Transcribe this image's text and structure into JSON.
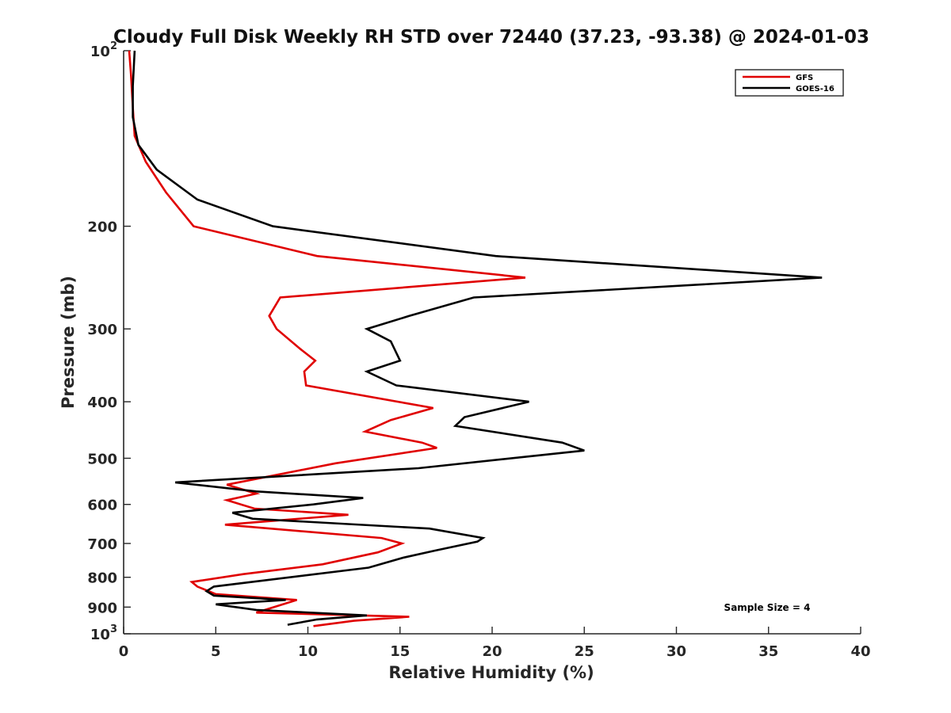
{
  "chart_data": {
    "type": "line",
    "title": "Cloudy Full Disk Weekly RH STD over 72440 (37.23, -93.38) @ 2024-01-03",
    "xlabel": "Relative Humidity (%)",
    "ylabel": "Pressure (mb)",
    "xlim": [
      0,
      40
    ],
    "ylim": [
      100,
      1000
    ],
    "y_scale": "log",
    "y_reversed": true,
    "grid": false,
    "legend_position": "top-right",
    "x_ticks": [
      0,
      5,
      10,
      15,
      20,
      25,
      30,
      35,
      40
    ],
    "x_tick_labels": [
      "0",
      "5",
      "10",
      "15",
      "20",
      "25",
      "30",
      "35",
      "40"
    ],
    "y_ticks": [
      100,
      200,
      300,
      400,
      500,
      600,
      700,
      800,
      900,
      1000
    ],
    "y_tick_labels": [
      {
        "base": "10",
        "exp": "2"
      },
      {
        "base": "200",
        "exp": ""
      },
      {
        "base": "300",
        "exp": ""
      },
      {
        "base": "400",
        "exp": ""
      },
      {
        "base": "500",
        "exp": ""
      },
      {
        "base": "600",
        "exp": ""
      },
      {
        "base": "700",
        "exp": ""
      },
      {
        "base": "800",
        "exp": ""
      },
      {
        "base": "900",
        "exp": ""
      },
      {
        "base": "10",
        "exp": "3"
      }
    ],
    "annotation": "Sample Size = 4",
    "series": [
      {
        "name": "GFS",
        "color": "#e00000",
        "points": [
          [
            0.3,
            100
          ],
          [
            0.4,
            110
          ],
          [
            0.5,
            125
          ],
          [
            0.6,
            140
          ],
          [
            1.2,
            155
          ],
          [
            2.3,
            175
          ],
          [
            3.8,
            200
          ],
          [
            10.5,
            225
          ],
          [
            21.8,
            245
          ],
          [
            8.5,
            265
          ],
          [
            7.9,
            285
          ],
          [
            8.3,
            300
          ],
          [
            9.6,
            325
          ],
          [
            10.4,
            340
          ],
          [
            9.8,
            355
          ],
          [
            9.9,
            375
          ],
          [
            16.8,
            410
          ],
          [
            14.5,
            430
          ],
          [
            13.1,
            450
          ],
          [
            16.2,
            470
          ],
          [
            17.0,
            480
          ],
          [
            11.5,
            510
          ],
          [
            5.6,
            555
          ],
          [
            7.2,
            575
          ],
          [
            5.6,
            590
          ],
          [
            7.1,
            610
          ],
          [
            12.2,
            625
          ],
          [
            5.5,
            650
          ],
          [
            14.0,
            685
          ],
          [
            15.1,
            700
          ],
          [
            13.8,
            725
          ],
          [
            10.8,
            760
          ],
          [
            6.5,
            790
          ],
          [
            3.7,
            815
          ],
          [
            4.0,
            830
          ],
          [
            5.0,
            855
          ],
          [
            9.4,
            875
          ],
          [
            7.2,
            920
          ],
          [
            15.5,
            935
          ],
          [
            12.5,
            950
          ],
          [
            10.3,
            970
          ]
        ]
      },
      {
        "name": "GOES-16",
        "color": "#000000",
        "points": [
          [
            0.6,
            100
          ],
          [
            0.5,
            115
          ],
          [
            0.5,
            130
          ],
          [
            0.8,
            145
          ],
          [
            1.8,
            160
          ],
          [
            4.0,
            180
          ],
          [
            8.1,
            200
          ],
          [
            20.2,
            225
          ],
          [
            37.9,
            245
          ],
          [
            19.0,
            265
          ],
          [
            15.5,
            285
          ],
          [
            13.2,
            300
          ],
          [
            14.5,
            315
          ],
          [
            15.0,
            340
          ],
          [
            13.2,
            355
          ],
          [
            14.8,
            375
          ],
          [
            22.0,
            400
          ],
          [
            18.5,
            425
          ],
          [
            18.0,
            440
          ],
          [
            23.8,
            470
          ],
          [
            25.0,
            485
          ],
          [
            16.0,
            520
          ],
          [
            2.8,
            550
          ],
          [
            7.2,
            570
          ],
          [
            13.0,
            585
          ],
          [
            10.3,
            600
          ],
          [
            5.9,
            620
          ],
          [
            7.0,
            635
          ],
          [
            16.6,
            660
          ],
          [
            19.5,
            685
          ],
          [
            19.2,
            695
          ],
          [
            16.9,
            720
          ],
          [
            15.2,
            740
          ],
          [
            13.3,
            770
          ],
          [
            4.9,
            830
          ],
          [
            4.5,
            845
          ],
          [
            4.9,
            860
          ],
          [
            8.8,
            875
          ],
          [
            5.0,
            890
          ],
          [
            7.2,
            910
          ],
          [
            13.2,
            930
          ],
          [
            10.5,
            945
          ],
          [
            8.9,
            965
          ]
        ]
      }
    ]
  }
}
